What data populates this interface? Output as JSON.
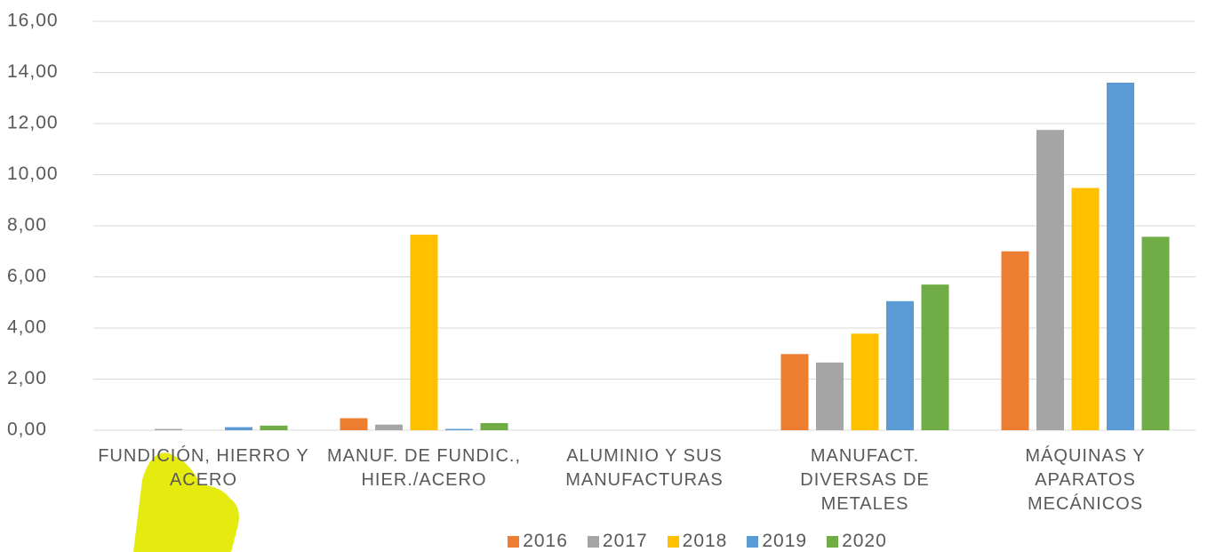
{
  "chart_data": {
    "type": "bar",
    "categories": [
      "FUNDICIÓN, HIERRO Y ACERO",
      "MANUF. DE FUNDIC., HIER./ACERO",
      "ALUMINIO Y SUS MANUFACTURAS",
      "MANUFACT. DIVERSAS DE METALES",
      "MÁQUINAS Y APARATOS MECÁNICOS"
    ],
    "series": [
      {
        "name": "2016",
        "color": "#ed7d31",
        "values": [
          0,
          0.47,
          0,
          2.98,
          7.0
        ]
      },
      {
        "name": "2017",
        "color": "#a5a5a5",
        "values": [
          0.05,
          0.22,
          0,
          2.65,
          11.75
        ]
      },
      {
        "name": "2018",
        "color": "#ffc000",
        "values": [
          0,
          7.65,
          0,
          3.78,
          9.48
        ]
      },
      {
        "name": "2019",
        "color": "#5b9bd5",
        "values": [
          0.12,
          0.05,
          0,
          5.05,
          13.6
        ]
      },
      {
        "name": "2020",
        "color": "#70ad47",
        "values": [
          0.18,
          0.28,
          0,
          5.7,
          7.57
        ]
      }
    ],
    "ylim": [
      0,
      16
    ],
    "yticks": [
      {
        "value": 0,
        "label": "0,00"
      },
      {
        "value": 2,
        "label": "2,00"
      },
      {
        "value": 4,
        "label": "4,00"
      },
      {
        "value": 6,
        "label": "6,00"
      },
      {
        "value": 8,
        "label": "8,00"
      },
      {
        "value": 10,
        "label": "10,00"
      },
      {
        "value": 12,
        "label": "12,00"
      },
      {
        "value": 14,
        "label": "14,00"
      },
      {
        "value": 16,
        "label": "16,00"
      }
    ],
    "grid": true,
    "legend": "bottom"
  }
}
